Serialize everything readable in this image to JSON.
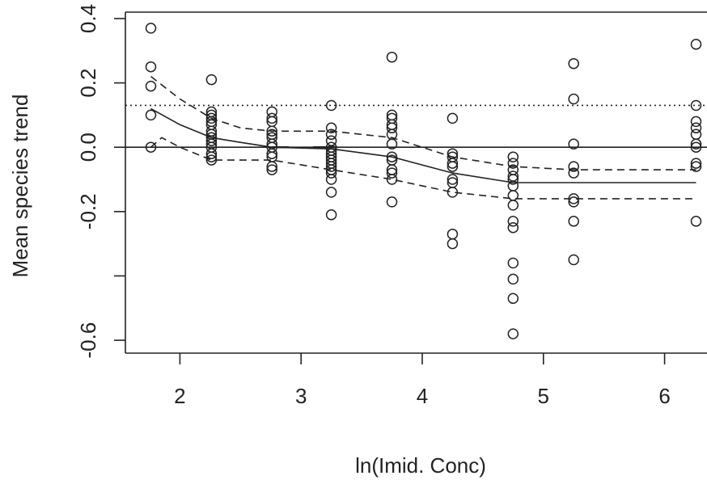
{
  "chart_data": {
    "type": "scatter",
    "title": "",
    "xlabel": "ln(Imid. Conc)",
    "ylabel": "Mean species trend",
    "xlim": [
      1.55,
      6.35
    ],
    "ylim": [
      -0.64,
      0.42
    ],
    "x_ticks": [
      2,
      3,
      4,
      5,
      6
    ],
    "x_tick_labels": [
      "2",
      "3",
      "4",
      "5",
      "6"
    ],
    "y_ticks": [
      0.4,
      0.2,
      0.0,
      -0.2,
      -0.6
    ],
    "y_tick_labels": [
      "0.4",
      "0.2",
      "0.0",
      "-0.2",
      "-0.6"
    ],
    "y_minor_ticks": [
      -0.4
    ],
    "grid": false,
    "colors": {
      "points": "#222222",
      "lines": "#222222"
    },
    "points": [
      [
        1.76,
        0.37
      ],
      [
        1.76,
        0.25
      ],
      [
        1.76,
        0.19
      ],
      [
        1.76,
        0.1
      ],
      [
        1.76,
        0.0
      ],
      [
        2.26,
        0.21
      ],
      [
        2.26,
        0.11
      ],
      [
        2.26,
        0.1
      ],
      [
        2.26,
        0.09
      ],
      [
        2.26,
        0.08
      ],
      [
        2.26,
        0.07
      ],
      [
        2.26,
        0.05
      ],
      [
        2.26,
        0.04
      ],
      [
        2.26,
        0.03
      ],
      [
        2.26,
        0.02
      ],
      [
        2.26,
        0.01
      ],
      [
        2.26,
        0.0
      ],
      [
        2.26,
        -0.02
      ],
      [
        2.26,
        -0.03
      ],
      [
        2.26,
        -0.04
      ],
      [
        2.76,
        0.11
      ],
      [
        2.76,
        0.09
      ],
      [
        2.76,
        0.08
      ],
      [
        2.76,
        0.05
      ],
      [
        2.76,
        0.04
      ],
      [
        2.76,
        0.03
      ],
      [
        2.76,
        0.01
      ],
      [
        2.76,
        0.0
      ],
      [
        2.76,
        -0.02
      ],
      [
        2.76,
        -0.03
      ],
      [
        2.76,
        -0.06
      ],
      [
        2.76,
        -0.07
      ],
      [
        3.25,
        0.13
      ],
      [
        3.25,
        0.06
      ],
      [
        3.25,
        0.04
      ],
      [
        3.25,
        0.02
      ],
      [
        3.25,
        0.0
      ],
      [
        3.25,
        -0.01
      ],
      [
        3.25,
        -0.02
      ],
      [
        3.25,
        -0.03
      ],
      [
        3.25,
        -0.04
      ],
      [
        3.25,
        -0.05
      ],
      [
        3.25,
        -0.06
      ],
      [
        3.25,
        -0.07
      ],
      [
        3.25,
        -0.08
      ],
      [
        3.25,
        -0.1
      ],
      [
        3.25,
        -0.14
      ],
      [
        3.25,
        -0.21
      ],
      [
        3.75,
        0.28
      ],
      [
        3.75,
        0.1
      ],
      [
        3.75,
        0.09
      ],
      [
        3.75,
        0.07
      ],
      [
        3.75,
        0.06
      ],
      [
        3.75,
        0.04
      ],
      [
        3.75,
        0.01
      ],
      [
        3.75,
        -0.03
      ],
      [
        3.75,
        -0.04
      ],
      [
        3.75,
        -0.07
      ],
      [
        3.75,
        -0.08
      ],
      [
        3.75,
        -0.1
      ],
      [
        3.75,
        -0.17
      ],
      [
        4.25,
        0.09
      ],
      [
        4.25,
        -0.02
      ],
      [
        4.25,
        -0.03
      ],
      [
        4.25,
        -0.05
      ],
      [
        4.25,
        -0.06
      ],
      [
        4.25,
        -0.1
      ],
      [
        4.25,
        -0.11
      ],
      [
        4.25,
        -0.14
      ],
      [
        4.25,
        -0.27
      ],
      [
        4.25,
        -0.3
      ],
      [
        4.75,
        -0.03
      ],
      [
        4.75,
        -0.05
      ],
      [
        4.75,
        -0.07
      ],
      [
        4.75,
        -0.09
      ],
      [
        4.75,
        -0.1
      ],
      [
        4.75,
        -0.12
      ],
      [
        4.75,
        -0.15
      ],
      [
        4.75,
        -0.18
      ],
      [
        4.75,
        -0.23
      ],
      [
        4.75,
        -0.25
      ],
      [
        4.75,
        -0.36
      ],
      [
        4.75,
        -0.41
      ],
      [
        4.75,
        -0.47
      ],
      [
        4.75,
        -0.58
      ],
      [
        5.25,
        0.26
      ],
      [
        5.25,
        0.15
      ],
      [
        5.25,
        0.01
      ],
      [
        5.25,
        -0.06
      ],
      [
        5.25,
        -0.08
      ],
      [
        5.25,
        -0.16
      ],
      [
        5.25,
        -0.17
      ],
      [
        5.25,
        -0.23
      ],
      [
        5.25,
        -0.35
      ],
      [
        6.26,
        0.32
      ],
      [
        6.26,
        0.13
      ],
      [
        6.26,
        0.08
      ],
      [
        6.26,
        0.06
      ],
      [
        6.26,
        0.04
      ],
      [
        6.26,
        0.01
      ],
      [
        6.26,
        0.0
      ],
      [
        6.26,
        -0.05
      ],
      [
        6.26,
        -0.06
      ],
      [
        6.26,
        -0.23
      ]
    ],
    "reference_lines": [
      {
        "y": 0.0,
        "style": "solid"
      },
      {
        "y": 0.13,
        "style": "dotted"
      }
    ],
    "fit_line": {
      "style": "solid",
      "x": [
        1.76,
        2.0,
        2.26,
        2.5,
        2.76,
        3.25,
        3.75,
        4.25,
        4.75,
        5.25,
        6.26
      ],
      "y": [
        0.12,
        0.07,
        0.03,
        0.015,
        0.0,
        -0.005,
        -0.03,
        -0.08,
        -0.11,
        -0.11,
        -0.11
      ]
    },
    "ci_upper": {
      "style": "dashed",
      "x": [
        1.76,
        2.0,
        2.26,
        2.5,
        2.76,
        3.25,
        3.75,
        4.25,
        4.75,
        5.25,
        6.26
      ],
      "y": [
        0.22,
        0.15,
        0.09,
        0.06,
        0.05,
        0.05,
        0.03,
        -0.03,
        -0.06,
        -0.07,
        -0.07
      ]
    },
    "ci_lower": {
      "style": "dashed",
      "x": [
        1.76,
        1.85,
        2.0,
        2.26,
        2.5,
        2.76,
        3.25,
        3.75,
        4.25,
        4.75,
        5.25,
        6.26
      ],
      "y": [
        0.0,
        0.03,
        0.0,
        -0.04,
        -0.04,
        -0.04,
        -0.07,
        -0.1,
        -0.14,
        -0.16,
        -0.16,
        -0.16
      ]
    },
    "bracket_segments": [
      {
        "x1": 2.76,
        "x2": 2.9,
        "y": 0.0
      },
      {
        "x1": 3.1,
        "x2": 3.3,
        "y": 0.0
      }
    ]
  }
}
